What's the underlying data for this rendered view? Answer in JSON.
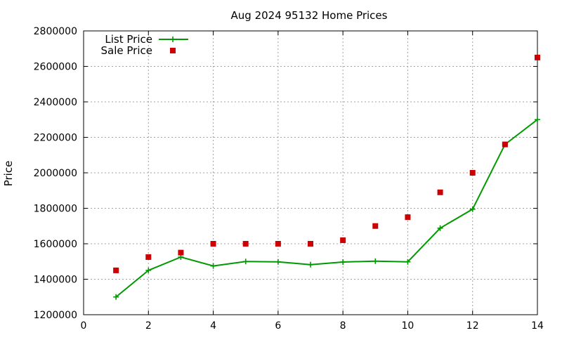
{
  "chart_data": {
    "type": "line",
    "title": "Aug 2024 95132 Home Prices",
    "xlabel": "",
    "ylabel": "Price",
    "xlim": [
      0,
      14
    ],
    "ylim": [
      1200000,
      2800000
    ],
    "x_ticks": [
      0,
      2,
      4,
      6,
      8,
      10,
      12,
      14
    ],
    "y_ticks": [
      1200000,
      1400000,
      1600000,
      1800000,
      2000000,
      2200000,
      2400000,
      2600000,
      2800000
    ],
    "grid": true,
    "legend_position": "top-left",
    "series": [
      {
        "name": "List Price",
        "style": "line-points",
        "color": "#009900",
        "x": [
          1,
          2,
          3,
          4,
          5,
          6,
          7,
          8,
          9,
          10,
          11,
          12,
          13,
          14
        ],
        "values": [
          1300000,
          1450000,
          1525000,
          1475000,
          1500000,
          1498000,
          1482000,
          1497000,
          1502000,
          1498000,
          1688000,
          1795000,
          2160000,
          2300000
        ]
      },
      {
        "name": "Sale Price",
        "style": "points",
        "color": "#cc0000",
        "x": [
          1,
          2,
          3,
          4,
          5,
          6,
          7,
          8,
          9,
          10,
          11,
          12,
          13,
          14
        ],
        "values": [
          1450000,
          1525000,
          1550000,
          1600000,
          1600000,
          1600000,
          1600000,
          1620000,
          1700000,
          1750000,
          1890000,
          2000000,
          2160000,
          2650000
        ]
      }
    ]
  }
}
